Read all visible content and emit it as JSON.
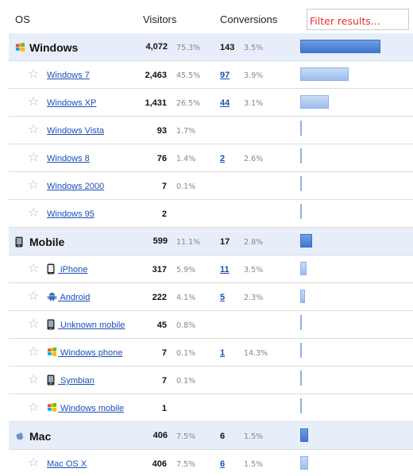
{
  "header": {
    "os_label": "OS",
    "visitors_label": "Visitors",
    "conversions_label": "Conversions",
    "filter_placeholder": "Filter results..."
  },
  "colors": {
    "group_row_bg": "#e7eef9",
    "link": "#1a4fb5",
    "group_bar": "#3f77cf",
    "sub_bar": "#9dbdee",
    "filter_text": "#e0312e"
  },
  "rows": [
    {
      "kind": "group",
      "icon": "windows-icon",
      "name": "Windows",
      "visitors": "4,072",
      "visitors_pct": "75.3%",
      "conversions": "143",
      "conversions_pct": "3.5%",
      "share": 1.0
    },
    {
      "kind": "sub",
      "icon": null,
      "name": "Windows 7",
      "visitors": "2,463",
      "visitors_pct": "45.5%",
      "conversions": "97",
      "conversions_pct": "3.9%",
      "share": 0.605
    },
    {
      "kind": "sub",
      "icon": null,
      "name": "Windows XP",
      "visitors": "1,431",
      "visitors_pct": "26.5%",
      "conversions": "44",
      "conversions_pct": "3.1%",
      "share": 0.352
    },
    {
      "kind": "sub",
      "icon": null,
      "name": "Windows Vista",
      "visitors": "93",
      "visitors_pct": "1.7%",
      "conversions": "",
      "conversions_pct": "",
      "share": 0.023
    },
    {
      "kind": "sub",
      "icon": null,
      "name": "Windows 8",
      "visitors": "76",
      "visitors_pct": "1.4%",
      "conversions": "2",
      "conversions_pct": "2.6%",
      "share": 0.019
    },
    {
      "kind": "sub",
      "icon": null,
      "name": "Windows 2000",
      "visitors": "7",
      "visitors_pct": "0.1%",
      "conversions": "",
      "conversions_pct": "",
      "share": 0.002
    },
    {
      "kind": "sub",
      "icon": null,
      "name": "Windows 95",
      "visitors": "2",
      "visitors_pct": "",
      "conversions": "",
      "conversions_pct": "",
      "share": 0.0005
    },
    {
      "kind": "group",
      "icon": "mobile-phone-icon",
      "name": "Mobile",
      "visitors": "599",
      "visitors_pct": "11.1%",
      "conversions": "17",
      "conversions_pct": "2.8%",
      "share": 0.147
    },
    {
      "kind": "sub",
      "icon": "iphone-icon",
      "name": " iPhone",
      "visitors": "317",
      "visitors_pct": "5.9%",
      "conversions": "11",
      "conversions_pct": "3.5%",
      "share": 0.078
    },
    {
      "kind": "sub",
      "icon": "android-icon",
      "name": " Android",
      "visitors": "222",
      "visitors_pct": "4.1%",
      "conversions": "5",
      "conversions_pct": "2.3%",
      "share": 0.055
    },
    {
      "kind": "sub",
      "icon": "mobile-phone-icon",
      "name": " Unknown mobile",
      "visitors": "45",
      "visitors_pct": "0.8%",
      "conversions": "",
      "conversions_pct": "",
      "share": 0.011
    },
    {
      "kind": "sub",
      "icon": "windows-icon",
      "name": " Windows phone",
      "visitors": "7",
      "visitors_pct": "0.1%",
      "conversions": "1",
      "conversions_pct": "14.3%",
      "share": 0.002
    },
    {
      "kind": "sub",
      "icon": "mobile-phone-icon",
      "name": " Symbian",
      "visitors": "7",
      "visitors_pct": "0.1%",
      "conversions": "",
      "conversions_pct": "",
      "share": 0.002
    },
    {
      "kind": "sub",
      "icon": "windows-icon",
      "name": " Windows mobile",
      "visitors": "1",
      "visitors_pct": "",
      "conversions": "",
      "conversions_pct": "",
      "share": 0.0003
    },
    {
      "kind": "group",
      "icon": "apple-icon",
      "name": "Mac",
      "visitors": "406",
      "visitors_pct": "7.5%",
      "conversions": "6",
      "conversions_pct": "1.5%",
      "share": 0.1
    },
    {
      "kind": "sub",
      "icon": null,
      "name": "Mac OS X",
      "visitors": "406",
      "visitors_pct": "7.5%",
      "conversions": "6",
      "conversions_pct": "1.5%",
      "share": 0.1
    }
  ]
}
